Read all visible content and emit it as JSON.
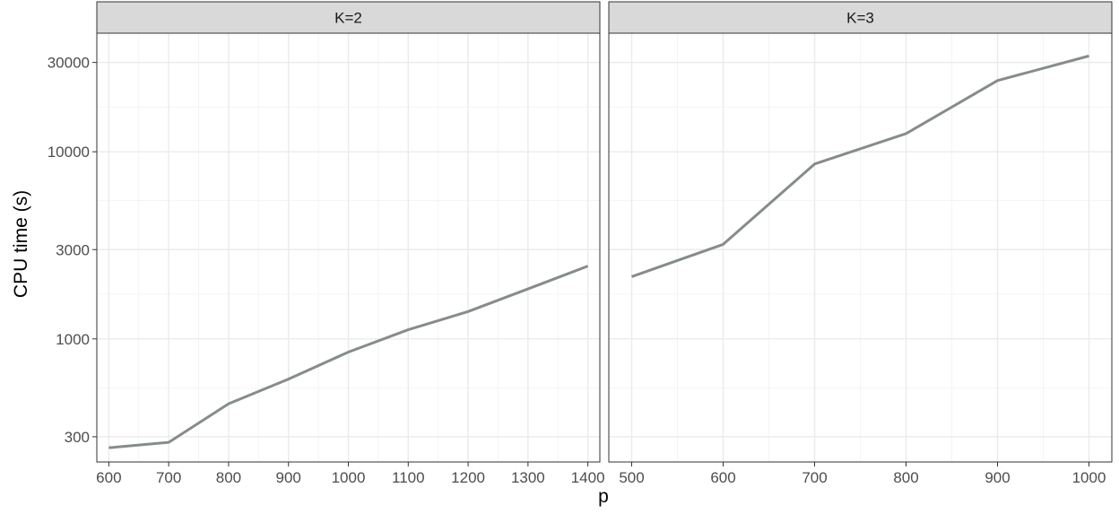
{
  "chart_data": {
    "type": "line",
    "xlabel": "p",
    "ylabel": "CPU time (s)",
    "y_scale": "log10",
    "ylim": [
      220,
      43000
    ],
    "y_ticks": [
      300,
      1000,
      3000,
      10000,
      30000
    ],
    "y_tick_labels": [
      "300",
      "1000",
      "3000",
      "10000",
      "30000"
    ],
    "grid": true,
    "line_color": "#868c8a",
    "panels": [
      {
        "title": "K=2",
        "xlim": [
          580,
          1420
        ],
        "x_ticks": [
          600,
          700,
          800,
          900,
          1000,
          1100,
          1200,
          1300,
          1400
        ],
        "x_tick_labels": [
          "600",
          "700",
          "800",
          "900",
          "1000",
          "1100",
          "1200",
          "1300",
          "1400"
        ],
        "series": [
          {
            "x": [
              600,
              700,
              800,
              900,
              1000,
              1100,
              1200,
              1300,
              1400
            ],
            "y": [
              262,
              280,
              450,
              610,
              850,
              1120,
              1400,
              1850,
              2450
            ]
          }
        ]
      },
      {
        "title": "K=3",
        "xlim": [
          475,
          1025
        ],
        "x_ticks": [
          500,
          600,
          700,
          800,
          900,
          1000
        ],
        "x_tick_labels": [
          "500",
          "600",
          "700",
          "800",
          "900",
          "1000"
        ],
        "series": [
          {
            "x": [
              500,
              600,
              700,
              800,
              900,
              1000
            ],
            "y": [
              2150,
              3200,
              8600,
              12500,
              24000,
              32500
            ]
          }
        ]
      }
    ]
  }
}
